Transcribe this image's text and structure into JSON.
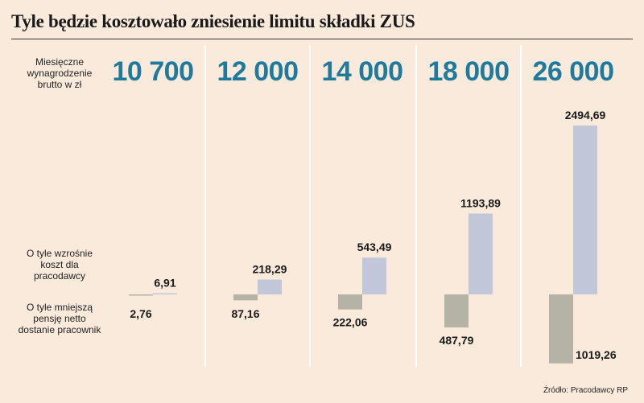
{
  "title": "Tyle będzie kosztowało zniesienie limitu składki ZUS",
  "labels": {
    "salary": "Miesięczne wynagrodzenie brutto w zł",
    "employer": "O tyle wzrośnie koszt dla pracodawcy",
    "employee": "O tyle mniejszą pensję netto dostanie pracownik"
  },
  "source": "Źródło: Pracodawcy RP",
  "colors": {
    "employer_bar": "#c1c7d8",
    "employee_bar": "#b4b3a5",
    "salary_text": "#1f7a9c"
  },
  "chart_data": {
    "type": "bar",
    "categories": [
      "10 700",
      "12 000",
      "14 000",
      "18 000",
      "26 000"
    ],
    "series": [
      {
        "values": [
          2.76,
          87.16,
          222.06,
          487.79,
          1019.26
        ]
      },
      {
        "values": [
          6.91,
          218.29,
          543.49,
          1193.89,
          2494.69
        ]
      }
    ],
    "value_labels": [
      [
        "2,76",
        "87,16",
        "222,06",
        "487,79",
        "1019,26"
      ],
      [
        "6,91",
        "218,29",
        "543,49",
        "1193,89",
        "2494,69"
      ]
    ]
  }
}
